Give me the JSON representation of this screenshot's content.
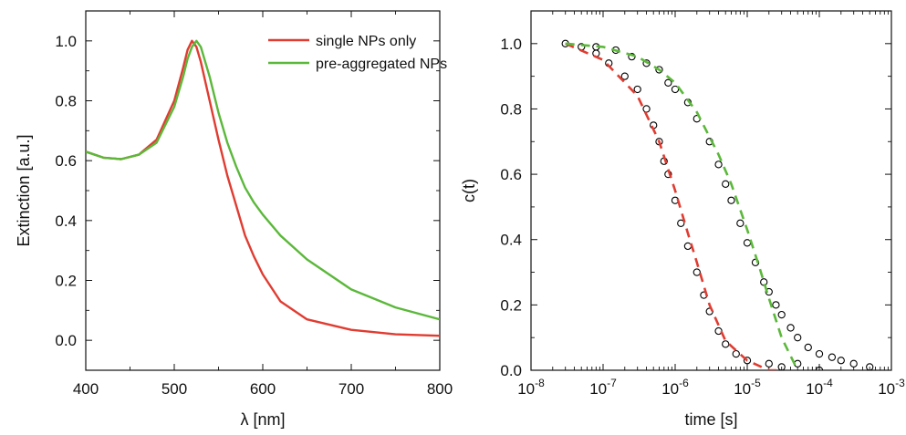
{
  "chart_data": [
    {
      "type": "line",
      "title": "",
      "xlabel": "λ [nm]",
      "ylabel": "Extinction [a.u.]",
      "xlim": [
        400,
        800
      ],
      "ylim": [
        -0.1,
        1.1
      ],
      "xticks": [
        400,
        500,
        600,
        700,
        800
      ],
      "yticks": [
        0.0,
        0.2,
        0.4,
        0.6,
        0.8,
        1.0
      ],
      "xtick_labels": [
        "400",
        "500",
        "600",
        "700",
        "800"
      ],
      "ytick_labels": [
        "0.0",
        "0.2",
        "0.4",
        "0.6",
        "0.8",
        "1.0"
      ],
      "grid": false,
      "legend_position": "top-right",
      "series": [
        {
          "name": "single NPs only",
          "color": "#e03c31",
          "x": [
            400,
            420,
            440,
            460,
            480,
            500,
            510,
            515,
            520,
            525,
            530,
            540,
            550,
            560,
            570,
            580,
            590,
            600,
            620,
            650,
            700,
            750,
            800
          ],
          "y": [
            0.63,
            0.61,
            0.605,
            0.62,
            0.67,
            0.8,
            0.91,
            0.97,
            1.0,
            0.98,
            0.93,
            0.8,
            0.67,
            0.55,
            0.45,
            0.35,
            0.28,
            0.22,
            0.13,
            0.07,
            0.035,
            0.02,
            0.015
          ]
        },
        {
          "name": "pre-aggregated NPs",
          "color": "#5bb83a",
          "x": [
            400,
            420,
            440,
            460,
            480,
            500,
            510,
            515,
            520,
            525,
            530,
            540,
            550,
            560,
            570,
            580,
            590,
            600,
            620,
            650,
            700,
            750,
            800
          ],
          "y": [
            0.63,
            0.61,
            0.605,
            0.62,
            0.66,
            0.78,
            0.88,
            0.94,
            0.98,
            1.0,
            0.98,
            0.88,
            0.76,
            0.66,
            0.58,
            0.51,
            0.46,
            0.42,
            0.35,
            0.27,
            0.17,
            0.11,
            0.07
          ]
        }
      ]
    },
    {
      "type": "scatter",
      "title": "",
      "xlabel": "time [s]",
      "ylabel": "c(t)",
      "xscale": "log",
      "xlim": [
        1e-08,
        0.001
      ],
      "ylim": [
        0.0,
        1.1
      ],
      "xticks": [
        1e-08,
        1e-07,
        1e-06,
        1e-05,
        0.0001,
        0.001
      ],
      "yticks": [
        0.0,
        0.2,
        0.4,
        0.6,
        0.8,
        1.0
      ],
      "xtick_labels": [
        "10-8",
        "10-7",
        "10-6",
        "10-5",
        "10-4",
        "10-3"
      ],
      "ytick_labels": [
        "0.0",
        "0.2",
        "0.4",
        "0.6",
        "0.8",
        "1.0"
      ],
      "grid": false,
      "series": [
        {
          "marker": "open-circle",
          "color": "#000000",
          "x": [
            3e-08,
            5e-08,
            8e-08,
            1.2e-07,
            2e-07,
            3e-07,
            4e-07,
            5e-07,
            6e-07,
            7e-07,
            8e-07,
            1e-06,
            1.2e-06,
            1.5e-06,
            2e-06,
            2.5e-06,
            3e-06,
            4e-06,
            5e-06,
            7e-06,
            1e-05,
            2e-05,
            3e-05,
            5e-05,
            0.0001
          ],
          "y": [
            1.0,
            0.99,
            0.97,
            0.94,
            0.9,
            0.86,
            0.8,
            0.75,
            0.7,
            0.64,
            0.6,
            0.52,
            0.45,
            0.38,
            0.3,
            0.23,
            0.18,
            0.12,
            0.08,
            0.05,
            0.03,
            0.02,
            0.01,
            0.02,
            0.0
          ]
        },
        {
          "marker": "open-circle",
          "color": "#000000",
          "x": [
            8e-08,
            1.5e-07,
            2.5e-07,
            4e-07,
            6e-07,
            8e-07,
            1e-06,
            1.5e-06,
            2e-06,
            3e-06,
            4e-06,
            5e-06,
            6e-06,
            8e-06,
            1e-05,
            1.3e-05,
            1.7e-05,
            2e-05,
            2.5e-05,
            3e-05,
            4e-05,
            5e-05,
            7e-05,
            0.0001,
            0.00015,
            0.0002,
            0.0003,
            0.0005
          ],
          "y": [
            0.99,
            0.98,
            0.96,
            0.94,
            0.92,
            0.88,
            0.86,
            0.82,
            0.77,
            0.7,
            0.63,
            0.57,
            0.52,
            0.45,
            0.39,
            0.33,
            0.27,
            0.24,
            0.2,
            0.17,
            0.13,
            0.1,
            0.07,
            0.05,
            0.04,
            0.03,
            0.02,
            0.01
          ]
        },
        {
          "line": "dashed",
          "color": "#e03c31",
          "x": [
            3e-08,
            1e-07,
            3e-07,
            6e-07,
            1e-06,
            1.5e-06,
            2e-06,
            3e-06,
            5e-06,
            1e-05,
            2e-05,
            3e-05
          ],
          "y": [
            1.0,
            0.95,
            0.84,
            0.7,
            0.55,
            0.42,
            0.33,
            0.2,
            0.09,
            0.03,
            0.0,
            0.0
          ]
        },
        {
          "line": "dashed",
          "color": "#5bb83a",
          "x": [
            3e-08,
            1e-07,
            3e-07,
            6e-07,
            1e-06,
            2e-06,
            4e-06,
            6e-06,
            1e-05,
            1.5e-05,
            2e-05,
            3e-05,
            5e-05
          ],
          "y": [
            1.0,
            0.99,
            0.96,
            0.92,
            0.88,
            0.79,
            0.66,
            0.57,
            0.43,
            0.31,
            0.22,
            0.1,
            0.0
          ]
        }
      ]
    }
  ]
}
